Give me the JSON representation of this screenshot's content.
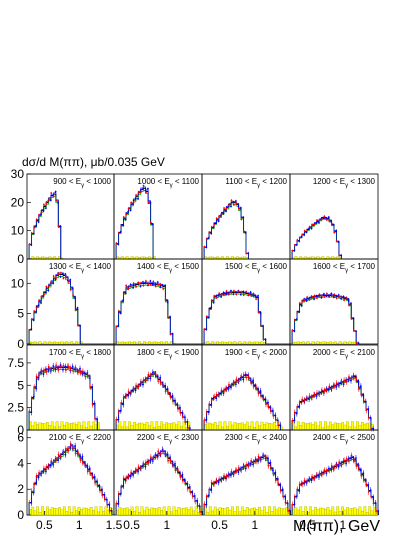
{
  "figure": {
    "ylabel": "dσ/d M(ππ), μb/0.035 GeV",
    "xlabel": "M(ππ), GeV"
  },
  "axis": {
    "row_ylim": [
      [
        0,
        30
      ],
      [
        0,
        14
      ],
      [
        0,
        9.5
      ],
      [
        0,
        6.6
      ]
    ],
    "row_yticks": [
      [
        "0",
        "10",
        "20",
        "30"
      ],
      [
        "0",
        "5",
        "10"
      ],
      [
        "0",
        "2.5",
        "5",
        "7.5"
      ],
      [
        "0",
        "2",
        "4",
        "6"
      ]
    ],
    "row_ytick_values": [
      [
        0,
        10,
        20,
        30
      ],
      [
        0,
        5,
        10
      ],
      [
        0,
        2.5,
        5,
        7.5
      ],
      [
        0,
        2,
        4,
        6
      ]
    ],
    "xlim": [
      0.25,
      1.5
    ],
    "xticks_first": [
      "0.5",
      "1",
      "1.5"
    ],
    "xticks_other": [
      "0.5",
      "1",
      "1.5"
    ],
    "xtick_values": [
      0.5,
      1.0,
      1.5
    ]
  },
  "colors": {
    "band": "#ffff00",
    "band_edge": "#999900",
    "model_black": "#000000",
    "model_green": "#00aa00",
    "model_blue": "#0000ff",
    "data_red": "#ff0000",
    "data_blue": "#0000ff"
  },
  "chart_data": {
    "type": "histogram-grid",
    "rows": 4,
    "cols": 4,
    "bin_width": 0.035,
    "panels": [
      {
        "label_lo": "900",
        "label_hi": "1000",
        "max_mass": 0.74,
        "peak": 23,
        "peak_pos": 0.63,
        "shape": "peak"
      },
      {
        "label_lo": "1000",
        "label_hi": "1100",
        "max_mass": 0.82,
        "peak": 25,
        "peak_pos": 0.66,
        "shape": "peak"
      },
      {
        "label_lo": "1100",
        "label_hi": "1200",
        "max_mass": 0.9,
        "peak": 20,
        "peak_pos": 0.68,
        "shape": "peak"
      },
      {
        "label_lo": "1200",
        "label_hi": "1300",
        "max_mass": 0.97,
        "peak": 14.5,
        "peak_pos": 0.72,
        "shape": "peak"
      },
      {
        "label_lo": "1300",
        "label_hi": "1400",
        "max_mass": 1.03,
        "peak": 11.5,
        "peak_pos": 0.7,
        "shape": "peak"
      },
      {
        "label_lo": "1400",
        "label_hi": "1500",
        "max_mass": 1.09,
        "peak": 10.0,
        "peak_pos": 0.72,
        "shape": "plateau"
      },
      {
        "label_lo": "1500",
        "label_hi": "1600",
        "max_mass": 1.15,
        "peak": 8.5,
        "peak_pos": 0.74,
        "shape": "plateau"
      },
      {
        "label_lo": "1600",
        "label_hi": "1700",
        "max_mass": 1.21,
        "peak": 8.0,
        "peak_pos": 0.78,
        "shape": "plateau"
      },
      {
        "label_lo": "1700",
        "label_hi": "1800",
        "max_mass": 1.27,
        "peak": 7.0,
        "peak_pos": 0.75,
        "shape": "plateau"
      },
      {
        "label_lo": "1800",
        "label_hi": "1900",
        "max_mass": 1.32,
        "peak": 6.4,
        "peak_pos": 0.82,
        "shape": "rise"
      },
      {
        "label_lo": "1900",
        "label_hi": "2000",
        "max_mass": 1.37,
        "peak": 6.2,
        "peak_pos": 0.88,
        "shape": "rise"
      },
      {
        "label_lo": "2000",
        "label_hi": "2100",
        "max_mass": 1.42,
        "peak": 6.0,
        "peak_pos": 1.18,
        "shape": "rise"
      },
      {
        "label_lo": "2100",
        "label_hi": "2200",
        "max_mass": 1.47,
        "peak": 5.4,
        "peak_pos": 0.9,
        "shape": "rise"
      },
      {
        "label_lo": "2200",
        "label_hi": "2300",
        "max_mass": 1.5,
        "peak": 5.0,
        "peak_pos": 0.95,
        "shape": "rise"
      },
      {
        "label_lo": "2300",
        "label_hi": "2400",
        "max_mass": 1.5,
        "peak": 4.6,
        "peak_pos": 1.15,
        "shape": "rise"
      },
      {
        "label_lo": "2400",
        "label_hi": "2500",
        "max_mass": 1.5,
        "peak": 4.5,
        "peak_pos": 1.15,
        "shape": "rise"
      }
    ]
  }
}
